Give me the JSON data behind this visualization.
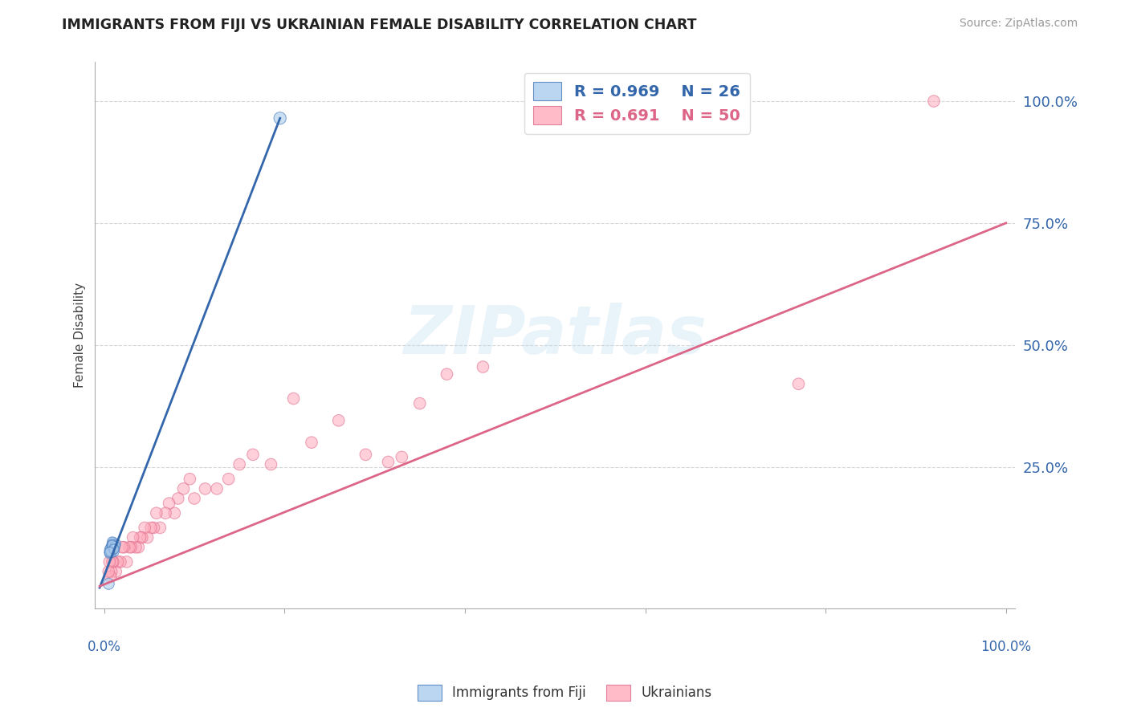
{
  "title": "IMMIGRANTS FROM FIJI VS UKRAINIAN FEMALE DISABILITY CORRELATION CHART",
  "source": "Source: ZipAtlas.com",
  "ylabel": "Female Disability",
  "watermark": "ZIPatlas",
  "legend_blue_r": "R = 0.969",
  "legend_blue_n": "N = 26",
  "legend_pink_r": "R = 0.691",
  "legend_pink_n": "N = 50",
  "blue_fill": "#aaccee",
  "blue_edge": "#4477bb",
  "pink_fill": "#ffaabb",
  "pink_edge": "#dd6688",
  "blue_line_color": "#3366aa",
  "pink_line_color": "#dd6688",
  "ytick_labels": [
    "25.0%",
    "50.0%",
    "75.0%",
    "100.0%"
  ],
  "ytick_values": [
    0.25,
    0.5,
    0.75,
    1.0
  ],
  "blue_scatter_x": [
    0.195,
    0.008,
    0.01,
    0.006,
    0.009,
    0.012,
    0.007,
    0.011,
    0.008,
    0.013,
    0.009,
    0.006,
    0.01,
    0.008,
    0.007,
    0.011,
    0.009,
    0.006,
    0.012,
    0.008,
    0.01,
    0.007,
    0.009,
    0.011,
    0.006,
    0.005
  ],
  "blue_scatter_y": [
    0.965,
    0.085,
    0.095,
    0.075,
    0.08,
    0.09,
    0.078,
    0.082,
    0.088,
    0.092,
    0.096,
    0.072,
    0.086,
    0.079,
    0.083,
    0.076,
    0.091,
    0.08,
    0.087,
    0.074,
    0.082,
    0.077,
    0.089,
    0.081,
    0.075,
    0.01
  ],
  "blue_scatter_sizes": [
    120,
    80,
    80,
    80,
    80,
    80,
    80,
    80,
    80,
    80,
    80,
    80,
    80,
    80,
    80,
    80,
    80,
    80,
    80,
    80,
    80,
    80,
    80,
    80,
    80,
    100
  ],
  "pink_scatter_x": [
    0.92,
    0.77,
    0.42,
    0.38,
    0.35,
    0.33,
    0.315,
    0.29,
    0.26,
    0.23,
    0.21,
    0.185,
    0.165,
    0.15,
    0.138,
    0.125,
    0.112,
    0.1,
    0.095,
    0.088,
    0.082,
    0.078,
    0.072,
    0.068,
    0.062,
    0.058,
    0.055,
    0.052,
    0.048,
    0.045,
    0.042,
    0.04,
    0.038,
    0.035,
    0.032,
    0.03,
    0.028,
    0.025,
    0.022,
    0.02,
    0.018,
    0.015,
    0.013,
    0.011,
    0.01,
    0.009,
    0.008,
    0.007,
    0.006,
    0.005
  ],
  "pink_scatter_y": [
    1.0,
    0.42,
    0.455,
    0.44,
    0.38,
    0.27,
    0.26,
    0.275,
    0.345,
    0.3,
    0.39,
    0.255,
    0.275,
    0.255,
    0.225,
    0.205,
    0.205,
    0.185,
    0.225,
    0.205,
    0.185,
    0.155,
    0.175,
    0.155,
    0.125,
    0.155,
    0.125,
    0.125,
    0.105,
    0.125,
    0.105,
    0.105,
    0.085,
    0.085,
    0.105,
    0.085,
    0.085,
    0.055,
    0.085,
    0.085,
    0.055,
    0.055,
    0.035,
    0.085,
    0.055,
    0.055,
    0.035,
    0.025,
    0.055,
    0.035
  ],
  "pink_scatter_sizes": [
    110,
    110,
    110,
    110,
    110,
    110,
    110,
    110,
    110,
    110,
    110,
    110,
    110,
    110,
    110,
    110,
    110,
    110,
    110,
    110,
    110,
    110,
    110,
    110,
    110,
    110,
    110,
    110,
    110,
    110,
    110,
    110,
    110,
    110,
    110,
    110,
    110,
    110,
    110,
    110,
    110,
    110,
    110,
    110,
    110,
    110,
    110,
    110,
    110,
    110
  ],
  "blue_line_x": [
    -0.005,
    0.195
  ],
  "blue_line_y": [
    0.002,
    0.965
  ],
  "pink_line_x": [
    -0.005,
    1.0
  ],
  "pink_line_y": [
    0.005,
    0.75
  ],
  "xlim": [
    -0.01,
    1.01
  ],
  "ylim": [
    -0.04,
    1.08
  ],
  "background_color": "#ffffff",
  "grid_color": "#cccccc",
  "axis_color": "#aaaaaa",
  "tick_label_color": "#3366aa",
  "legend_blue_text_color": "#3366aa",
  "legend_pink_text_color": "#dd6688"
}
